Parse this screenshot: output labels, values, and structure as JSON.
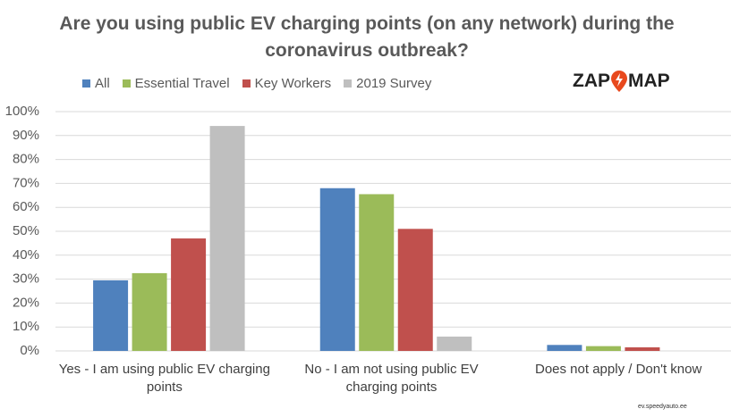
{
  "chart_data": {
    "type": "bar",
    "title": "Are you using public EV charging points (on any network) during the coronavirus outbreak?",
    "categories": [
      "Yes - I am using public EV charging points",
      "No - I am not using public EV charging points",
      "Does not apply / Don't know"
    ],
    "series": [
      {
        "name": "All",
        "color": "#4f81bd",
        "values": [
          29.5,
          68,
          2.5
        ]
      },
      {
        "name": "Essential Travel",
        "color": "#9bbb59",
        "values": [
          32.5,
          65.5,
          2
        ]
      },
      {
        "name": "Key Workers",
        "color": "#c0504d",
        "values": [
          47,
          51,
          1.5
        ]
      },
      {
        "name": "2019 Survey",
        "color": "#bfbfbf",
        "values": [
          94,
          6,
          null
        ]
      }
    ],
    "ylim": [
      0,
      100
    ],
    "yticks": [
      {
        "value": 0,
        "label": "0%"
      },
      {
        "value": 10,
        "label": "10%"
      },
      {
        "value": 20,
        "label": "20%"
      },
      {
        "value": 30,
        "label": "30%"
      },
      {
        "value": 40,
        "label": "40%"
      },
      {
        "value": 50,
        "label": "50%"
      },
      {
        "value": 60,
        "label": "60%"
      },
      {
        "value": 70,
        "label": "70%"
      },
      {
        "value": 80,
        "label": "80%"
      },
      {
        "value": 90,
        "label": "90%"
      },
      {
        "value": 100,
        "label": "100%"
      }
    ],
    "grid": true,
    "logo": {
      "left": "ZAP",
      "right": "MAP"
    },
    "watermark": "ev.speedyauto.ee"
  }
}
